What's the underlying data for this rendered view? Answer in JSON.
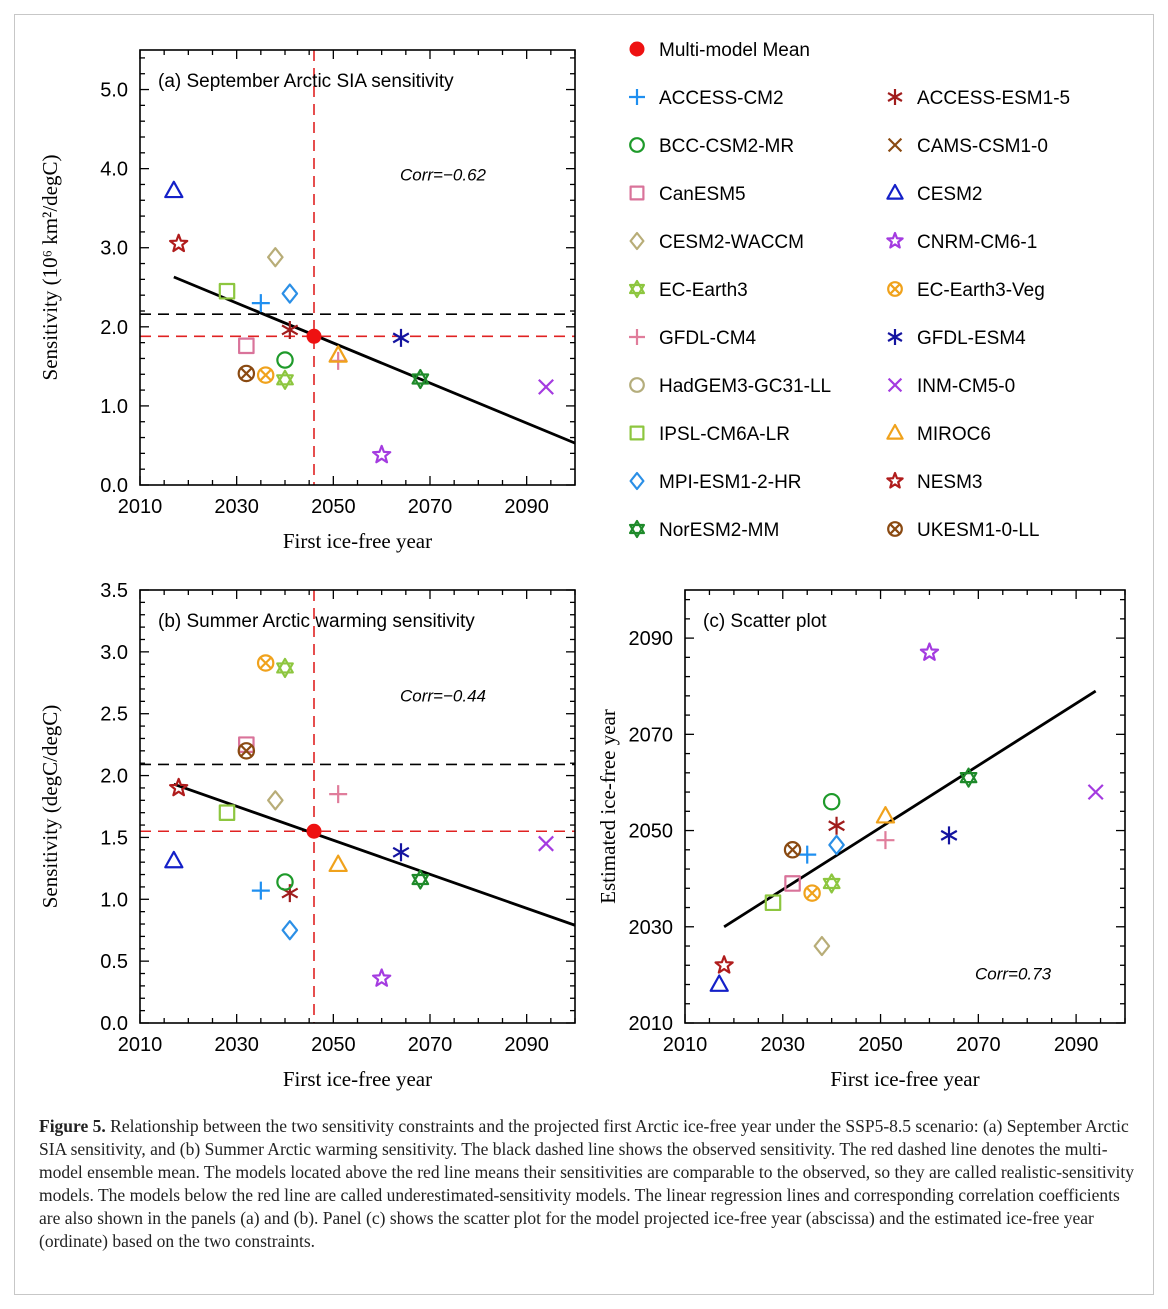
{
  "caption": {
    "label": "Figure 5.",
    "text": "Relationship between the two sensitivity constraints and the projected first Arctic ice-free year under the SSP5-8.5 scenario: (a) September Arctic SIA sensitivity, and (b) Summer Arctic warming sensitivity. The black dashed line shows the observed sensitivity. The red dashed line denotes the multi-model ensemble mean. The models located above the red line means their sensitivities are comparable to the observed, so they are called realistic-sensitivity models. The models below the red line are called underestimated-sensitivity models. The linear regression lines and corresponding correlation coefficients are also shown in the panels (a) and (b). Panel (c) shows the scatter plot for the model projected ice-free year (abscissa) and the estimated ice-free year (ordinate) based on the two constraints."
  },
  "legend": {
    "mean_label": "Multi-model Mean",
    "models": [
      {
        "name": "ACCESS-CM2",
        "marker": "plus",
        "color": "#1f8ff0"
      },
      {
        "name": "ACCESS-ESM1-5",
        "marker": "star6",
        "color": "#a01c1c"
      },
      {
        "name": "BCC-CSM2-MR",
        "marker": "circle",
        "color": "#1e9a2a"
      },
      {
        "name": "CAMS-CSM1-0",
        "marker": "cross",
        "color": "#8a4a12"
      },
      {
        "name": "CanESM5",
        "marker": "square",
        "color": "#d9739a"
      },
      {
        "name": "CESM2",
        "marker": "triangle",
        "color": "#1420c8"
      },
      {
        "name": "CESM2-WACCM",
        "marker": "diamond",
        "color": "#b8ad78"
      },
      {
        "name": "CNRM-CM6-1",
        "marker": "star5",
        "color": "#a43be0"
      },
      {
        "name": "EC-Earth3",
        "marker": "hexstar",
        "color": "#8dc63f"
      },
      {
        "name": "EC-Earth3-Veg",
        "marker": "circlex",
        "color": "#f0a21c"
      },
      {
        "name": "GFDL-CM4",
        "marker": "plus",
        "color": "#e07d9b"
      },
      {
        "name": "GFDL-ESM4",
        "marker": "star6",
        "color": "#1414a0"
      },
      {
        "name": "HadGEM3-GC31-LL",
        "marker": "circle",
        "color": "#b4ad7c"
      },
      {
        "name": "INM-CM5-0",
        "marker": "cross",
        "color": "#a43be0"
      },
      {
        "name": "IPSL-CM6A-LR",
        "marker": "square",
        "color": "#8dc63f"
      },
      {
        "name": "MIROC6",
        "marker": "triangle",
        "color": "#f0a21c"
      },
      {
        "name": "MPI-ESM1-2-HR",
        "marker": "diamond",
        "color": "#2b8fe6"
      },
      {
        "name": "NESM3",
        "marker": "star5",
        "color": "#b01c1c"
      },
      {
        "name": "NorESM2-MM",
        "marker": "hexstar",
        "color": "#1e8a2a"
      },
      {
        "name": "UKESM1-0-LL",
        "marker": "circlex",
        "color": "#8a4a12"
      }
    ]
  },
  "colors": {
    "mean": "#ee1111",
    "obs": "#000000",
    "red_dash": "#e02222",
    "regression": "#000000"
  },
  "chart_data": [
    {
      "panel": "a",
      "type": "scatter",
      "title": "(a) September Arctic SIA sensitivity",
      "corr": "Corr=−0.62",
      "xlabel": "First ice-free year",
      "ylabel": "Sensitivity (10⁶ km²/degC)",
      "xlim": [
        2010,
        2100
      ],
      "ylim": [
        0,
        5.5
      ],
      "xticks": [
        2010,
        2030,
        2050,
        2070,
        2090
      ],
      "yticks": [
        0.0,
        1.0,
        2.0,
        3.0,
        4.0,
        5.0
      ],
      "ytick_labels": [
        "0.0",
        "1.0",
        "2.0",
        "3.0",
        "4.0",
        "5.0"
      ],
      "observed": 2.16,
      "mean": {
        "x": 2046,
        "y": 1.88
      },
      "regression": {
        "x": [
          2017,
          2100
        ],
        "y": [
          2.63,
          0.53
        ]
      },
      "points": [
        {
          "model": "ACCESS-CM2",
          "x": 2035,
          "y": 2.3
        },
        {
          "model": "ACCESS-ESM1-5",
          "x": 2041,
          "y": 1.96
        },
        {
          "model": "BCC-CSM2-MR",
          "x": 2040,
          "y": 1.58
        },
        {
          "model": "CAMS-CSM1-0",
          "x": null,
          "y": null
        },
        {
          "model": "CanESM5",
          "x": 2032,
          "y": 1.76
        },
        {
          "model": "CESM2",
          "x": 2017,
          "y": 3.72
        },
        {
          "model": "CESM2-WACCM",
          "x": 2038,
          "y": 2.88
        },
        {
          "model": "CNRM-CM6-1",
          "x": 2060,
          "y": 0.38
        },
        {
          "model": "EC-Earth3",
          "x": 2040,
          "y": 1.33
        },
        {
          "model": "EC-Earth3-Veg",
          "x": 2036,
          "y": 1.39
        },
        {
          "model": "GFDL-CM4",
          "x": 2051,
          "y": 1.57
        },
        {
          "model": "GFDL-ESM4",
          "x": 2064,
          "y": 1.86
        },
        {
          "model": "HadGEM3-GC31-LL",
          "x": null,
          "y": null
        },
        {
          "model": "INM-CM5-0",
          "x": 2094,
          "y": 1.24
        },
        {
          "model": "IPSL-CM6A-LR",
          "x": 2028,
          "y": 2.45
        },
        {
          "model": "MIROC6",
          "x": 2051,
          "y": 1.64
        },
        {
          "model": "MPI-ESM1-2-HR",
          "x": 2041,
          "y": 2.42
        },
        {
          "model": "NESM3",
          "x": 2018,
          "y": 3.05
        },
        {
          "model": "NorESM2-MM",
          "x": 2068,
          "y": 1.34
        },
        {
          "model": "UKESM1-0-LL",
          "x": 2032,
          "y": 1.41
        }
      ]
    },
    {
      "panel": "b",
      "type": "scatter",
      "title": "(b) Summer Arctic warming sensitivity",
      "corr": "Corr=−0.44",
      "xlabel": "First ice-free year",
      "ylabel": "Sensitivity (degC/degC)",
      "xlim": [
        2010,
        2100
      ],
      "ylim": [
        0,
        3.5
      ],
      "xticks": [
        2010,
        2030,
        2050,
        2070,
        2090
      ],
      "yticks": [
        0.0,
        0.5,
        1.0,
        1.5,
        2.0,
        2.5,
        3.0,
        3.5
      ],
      "ytick_labels": [
        "0.0",
        "0.5",
        "1.0",
        "1.5",
        "2.0",
        "2.5",
        "3.0",
        "3.5"
      ],
      "observed": 2.09,
      "mean": {
        "x": 2046,
        "y": 1.55
      },
      "regression": {
        "x": [
          2017,
          2100
        ],
        "y": [
          1.93,
          0.79
        ]
      },
      "points": [
        {
          "model": "ACCESS-CM2",
          "x": 2035,
          "y": 1.07
        },
        {
          "model": "ACCESS-ESM1-5",
          "x": 2041,
          "y": 1.05
        },
        {
          "model": "BCC-CSM2-MR",
          "x": 2040,
          "y": 1.14
        },
        {
          "model": "CAMS-CSM1-0",
          "x": null,
          "y": null
        },
        {
          "model": "CanESM5",
          "x": 2032,
          "y": 2.25
        },
        {
          "model": "CESM2",
          "x": 2017,
          "y": 1.31
        },
        {
          "model": "CESM2-WACCM",
          "x": 2038,
          "y": 1.8
        },
        {
          "model": "CNRM-CM6-1",
          "x": 2060,
          "y": 0.36
        },
        {
          "model": "EC-Earth3",
          "x": 2040,
          "y": 2.87
        },
        {
          "model": "EC-Earth3-Veg",
          "x": 2036,
          "y": 2.91
        },
        {
          "model": "GFDL-CM4",
          "x": 2051,
          "y": 1.85
        },
        {
          "model": "GFDL-ESM4",
          "x": 2064,
          "y": 1.38
        },
        {
          "model": "HadGEM3-GC31-LL",
          "x": null,
          "y": null
        },
        {
          "model": "INM-CM5-0",
          "x": 2094,
          "y": 1.45
        },
        {
          "model": "IPSL-CM6A-LR",
          "x": 2028,
          "y": 1.7
        },
        {
          "model": "MIROC6",
          "x": 2051,
          "y": 1.28
        },
        {
          "model": "MPI-ESM1-2-HR",
          "x": 2041,
          "y": 0.75
        },
        {
          "model": "NESM3",
          "x": 2018,
          "y": 1.9
        },
        {
          "model": "NorESM2-MM",
          "x": 2068,
          "y": 1.16
        },
        {
          "model": "UKESM1-0-LL",
          "x": 2032,
          "y": 2.2
        }
      ]
    },
    {
      "panel": "c",
      "type": "scatter",
      "title": "(c) Scatter plot",
      "corr": "Corr=0.73",
      "xlabel": "First ice-free year",
      "ylabel": "Estimated ice-free year",
      "xlim": [
        2010,
        2100
      ],
      "ylim": [
        2010,
        2100
      ],
      "xticks": [
        2010,
        2030,
        2050,
        2070,
        2090
      ],
      "yticks": [
        2010,
        2030,
        2050,
        2070,
        2090
      ],
      "ytick_labels": [
        "2010",
        "2030",
        "2050",
        "2070",
        "2090"
      ],
      "observed": null,
      "mean": null,
      "regression": {
        "x": [
          2018,
          2094
        ],
        "y": [
          2030,
          2079
        ]
      },
      "points": [
        {
          "model": "ACCESS-CM2",
          "x": 2035,
          "y": 2045
        },
        {
          "model": "ACCESS-ESM1-5",
          "x": 2041,
          "y": 2051
        },
        {
          "model": "BCC-CSM2-MR",
          "x": 2040,
          "y": 2056
        },
        {
          "model": "CAMS-CSM1-0",
          "x": null,
          "y": null
        },
        {
          "model": "CanESM5",
          "x": 2032,
          "y": 2039
        },
        {
          "model": "CESM2",
          "x": 2017,
          "y": 2018
        },
        {
          "model": "CESM2-WACCM",
          "x": 2038,
          "y": 2026
        },
        {
          "model": "CNRM-CM6-1",
          "x": 2060,
          "y": 2087
        },
        {
          "model": "EC-Earth3",
          "x": 2040,
          "y": 2039
        },
        {
          "model": "EC-Earth3-Veg",
          "x": 2036,
          "y": 2037
        },
        {
          "model": "GFDL-CM4",
          "x": 2051,
          "y": 2048
        },
        {
          "model": "GFDL-ESM4",
          "x": 2064,
          "y": 2049
        },
        {
          "model": "HadGEM3-GC31-LL",
          "x": null,
          "y": null
        },
        {
          "model": "INM-CM5-0",
          "x": 2094,
          "y": 2058
        },
        {
          "model": "IPSL-CM6A-LR",
          "x": 2028,
          "y": 2035
        },
        {
          "model": "MIROC6",
          "x": 2051,
          "y": 2053
        },
        {
          "model": "MPI-ESM1-2-HR",
          "x": 2041,
          "y": 2047
        },
        {
          "model": "NESM3",
          "x": 2018,
          "y": 2022
        },
        {
          "model": "NorESM2-MM",
          "x": 2068,
          "y": 2061
        },
        {
          "model": "UKESM1-0-LL",
          "x": 2032,
          "y": 2046
        }
      ]
    }
  ]
}
